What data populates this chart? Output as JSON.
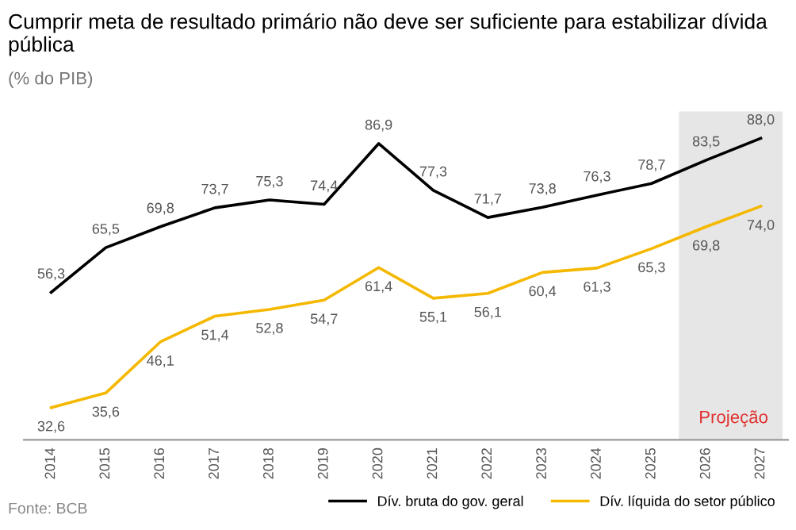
{
  "chart_data": {
    "type": "line",
    "title": "Cumprir meta de resultado primário não deve ser suficiente para estabilizar dívida pública",
    "subtitle": "(% do PIB)",
    "categories": [
      "2014",
      "2015",
      "2016",
      "2017",
      "2018",
      "2019",
      "2020",
      "2021",
      "2022",
      "2023",
      "2024",
      "2025",
      "2026",
      "2027"
    ],
    "series": [
      {
        "name": "Dív. bruta do gov. geral",
        "color": "#000000",
        "values": [
          56.3,
          65.5,
          69.8,
          73.7,
          75.3,
          74.4,
          86.9,
          77.3,
          71.7,
          73.8,
          76.3,
          78.7,
          83.5,
          88.0
        ],
        "value_labels": [
          "56,3",
          "65,5",
          "69,8",
          "73,7",
          "75,3",
          "74,4",
          "86,9",
          "77,3",
          "71,7",
          "73,8",
          "76,3",
          "78,7",
          "83,5",
          "88,0"
        ]
      },
      {
        "name": "Dív. líquida do setor público",
        "color": "#f5b800",
        "values": [
          32.6,
          35.6,
          46.1,
          51.4,
          52.8,
          54.7,
          61.4,
          55.1,
          56.1,
          60.4,
          61.3,
          65.3,
          69.8,
          74.0
        ],
        "value_labels": [
          "32,6",
          "35,6",
          "46,1",
          "51,4",
          "52,8",
          "54,7",
          "61,4",
          "55,1",
          "56,1",
          "60,4",
          "61,3",
          "65,3",
          "69,8",
          "74,0"
        ]
      }
    ],
    "bands": [
      {
        "axis": "x",
        "from": "2026",
        "to": "2027",
        "label": "Projeção",
        "color": "#e6e6e6"
      }
    ],
    "annotations": [
      "Fonte: BCB"
    ],
    "legend": "bottom right",
    "grid": false,
    "marker": "none",
    "line_style": "solid"
  }
}
